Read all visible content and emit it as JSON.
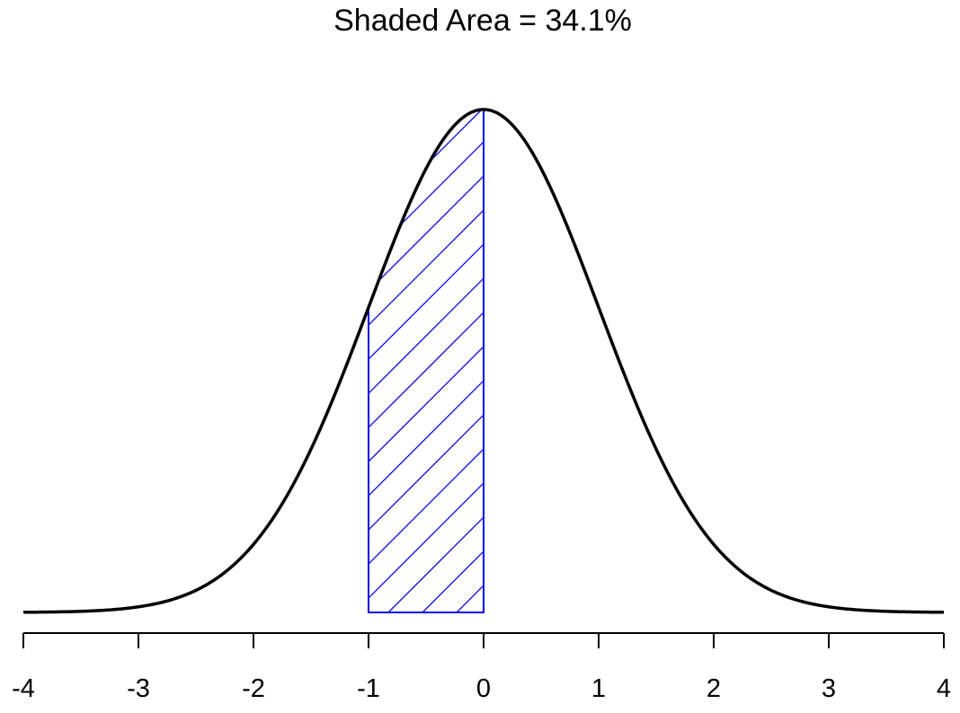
{
  "chart_data": {
    "type": "area",
    "title": "Shaded Area = 34.1%",
    "xlabel": "",
    "ylabel": "",
    "xlim": [
      -4,
      4
    ],
    "ylim": [
      0,
      0.3989
    ],
    "x_ticks": [
      -4,
      -3,
      -2,
      -1,
      0,
      1,
      2,
      3,
      4
    ],
    "x_tick_labels": [
      "-4",
      "-3",
      "-2",
      "-1",
      "0",
      "1",
      "2",
      "3",
      "4"
    ],
    "curve": {
      "distribution": "standard normal",
      "mean": 0,
      "sd": 1,
      "color": "#000000"
    },
    "shaded_region": {
      "from": -1,
      "to": 0,
      "fill": "diagonal hatch",
      "color": "#0000ee"
    },
    "grid": false,
    "legend": "none"
  }
}
